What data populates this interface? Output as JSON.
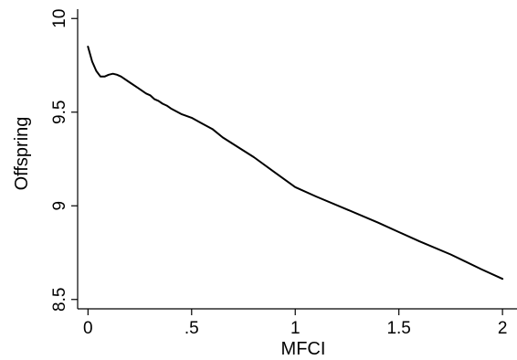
{
  "chart_data": {
    "type": "line",
    "xlabel": "MFCI",
    "ylabel": "Offspring",
    "xlim": [
      -0.05,
      2.07
    ],
    "ylim": [
      8.45,
      10.05
    ],
    "grid": false,
    "x_ticks": [
      {
        "value": 0,
        "label": "0"
      },
      {
        "value": 0.5,
        "label": ".5"
      },
      {
        "value": 1,
        "label": "1"
      },
      {
        "value": 1.5,
        "label": "1.5"
      },
      {
        "value": 2,
        "label": "2"
      }
    ],
    "y_ticks": [
      {
        "value": 8.5,
        "label": "8.5"
      },
      {
        "value": 9,
        "label": "9"
      },
      {
        "value": 9.5,
        "label": "9.5"
      },
      {
        "value": 10,
        "label": "10"
      }
    ],
    "series": [
      {
        "x": [
          0.0,
          0.02,
          0.04,
          0.06,
          0.08,
          0.1,
          0.12,
          0.14,
          0.16,
          0.2,
          0.24,
          0.28,
          0.3,
          0.32,
          0.34,
          0.36,
          0.38,
          0.4,
          0.45,
          0.5,
          0.55,
          0.6,
          0.65,
          0.7,
          0.8,
          0.9,
          1.0,
          1.1,
          1.25,
          1.4,
          1.5,
          1.6,
          1.75,
          1.9,
          2.0
        ],
        "y": [
          9.85,
          9.77,
          9.72,
          9.69,
          9.69,
          9.7,
          9.705,
          9.7,
          9.69,
          9.66,
          9.63,
          9.6,
          9.59,
          9.57,
          9.56,
          9.545,
          9.535,
          9.52,
          9.49,
          9.47,
          9.44,
          9.41,
          9.365,
          9.33,
          9.26,
          9.18,
          9.1,
          9.05,
          8.98,
          8.91,
          8.86,
          8.81,
          8.74,
          8.66,
          8.61
        ]
      }
    ]
  }
}
